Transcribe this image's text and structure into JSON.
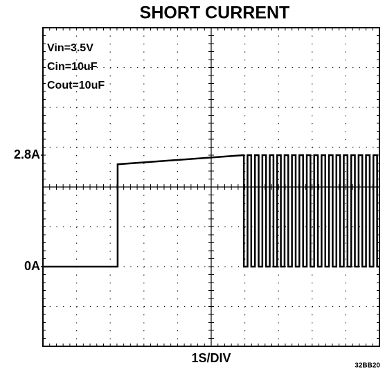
{
  "chart_data": {
    "type": "line",
    "title": "SHORT CURRENT",
    "xlabel": "1S/DIV",
    "annotations": [
      "Vin=3.5V",
      "Cin=10uF",
      "Cout=10uF"
    ],
    "figure_id": "32BB20",
    "xlim": [
      0,
      10
    ],
    "ylim": [
      -2,
      6
    ],
    "yticks": [
      {
        "value": 2.8,
        "label": "2.8A"
      },
      {
        "value": 0,
        "label": "0A"
      }
    ],
    "color": "#000000",
    "x": [
      0,
      2.22,
      2.22,
      5.97,
      5.97,
      6.08,
      6.08,
      6.19,
      6.19,
      6.3,
      6.3,
      6.41,
      6.41,
      6.52,
      6.52,
      6.63,
      6.63,
      6.74,
      6.74,
      6.85,
      6.85,
      6.96,
      6.96,
      7.07,
      7.07,
      7.18,
      7.18,
      7.29,
      7.29,
      7.4,
      7.4,
      7.51,
      7.51,
      7.62,
      7.62,
      7.73,
      7.73,
      7.84,
      7.84,
      7.95,
      7.95,
      8.06,
      8.06,
      8.17,
      8.17,
      8.28,
      8.28,
      8.39,
      8.39,
      8.5,
      8.5,
      8.61,
      8.61,
      8.72,
      8.72,
      8.83,
      8.83,
      8.94,
      8.94,
      9.05,
      9.05,
      9.16,
      9.16,
      9.27,
      9.27,
      9.38,
      9.38,
      9.49,
      9.49,
      9.6,
      9.6,
      9.71,
      9.71,
      9.82,
      9.82,
      9.93,
      9.93,
      10
    ],
    "values": [
      0,
      0,
      2.57,
      2.8,
      0,
      0,
      2.8,
      2.8,
      0,
      0,
      2.8,
      2.8,
      0,
      0,
      2.8,
      2.8,
      0,
      0,
      2.8,
      2.8,
      0,
      0,
      2.8,
      2.8,
      0,
      0,
      2.8,
      2.8,
      0,
      0,
      2.8,
      2.8,
      0,
      0,
      2.8,
      2.8,
      0,
      0,
      2.8,
      2.8,
      0,
      0,
      2.8,
      2.8,
      0,
      0,
      2.8,
      2.8,
      0,
      0,
      2.8,
      2.8,
      0,
      0,
      2.8,
      2.8,
      0,
      0,
      2.8,
      2.8,
      0,
      0,
      2.8,
      2.8,
      0,
      0,
      2.8,
      2.8,
      0,
      0,
      2.8,
      2.8,
      0,
      0,
      2.8,
      2.8,
      0,
      0
    ]
  }
}
